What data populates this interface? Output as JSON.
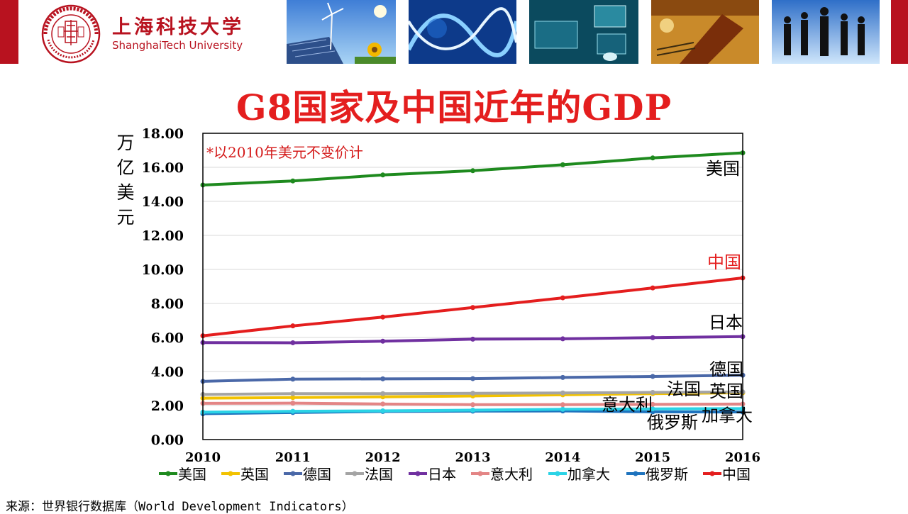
{
  "header": {
    "university_cn": "上海科技大学",
    "university_en": "ShanghaiTech University",
    "seal_text": "上海科技大学 SHANGHAITECH UNIVERSITY 2013"
  },
  "slide": {
    "title": "G8国家及中国近年的GDP",
    "source": "来源：世界银行数据库（World Development Indicators）"
  },
  "colors": {
    "brand_red": "#b8121f",
    "title_red": "#e41e1e"
  },
  "chart_data": {
    "type": "line",
    "title": "G8国家及中国近年的GDP",
    "ylabel": "万亿美元",
    "xlabel": "",
    "note": "*以2010年美元不变价计",
    "ylim": [
      0,
      18
    ],
    "y_ticks": [
      "0.00",
      "2.00",
      "4.00",
      "6.00",
      "8.00",
      "10.00",
      "12.00",
      "14.00",
      "16.00",
      "18.00"
    ],
    "x": [
      "2010",
      "2011",
      "2012",
      "2013",
      "2014",
      "2015",
      "2016"
    ],
    "grid": true,
    "legend_position": "bottom",
    "series": [
      {
        "name": "美国",
        "color": "#1e8a1e",
        "values": [
          14.96,
          15.2,
          15.55,
          15.8,
          16.15,
          16.55,
          16.85
        ]
      },
      {
        "name": "英国",
        "color": "#f2c200",
        "values": [
          2.43,
          2.47,
          2.51,
          2.56,
          2.63,
          2.7,
          2.75
        ]
      },
      {
        "name": "德国",
        "color": "#4a68a8",
        "values": [
          3.42,
          3.55,
          3.57,
          3.58,
          3.65,
          3.71,
          3.78
        ]
      },
      {
        "name": "法国",
        "color": "#a4a4a4",
        "values": [
          2.65,
          2.7,
          2.7,
          2.72,
          2.74,
          2.77,
          2.8
        ]
      },
      {
        "name": "日本",
        "color": "#7030a0",
        "values": [
          5.7,
          5.69,
          5.78,
          5.9,
          5.92,
          5.99,
          6.05
        ]
      },
      {
        "name": "意大利",
        "color": "#e38585",
        "values": [
          2.13,
          2.14,
          2.09,
          2.05,
          2.05,
          2.07,
          2.09
        ]
      },
      {
        "name": "加拿大",
        "color": "#2ad3e6",
        "values": [
          1.61,
          1.66,
          1.69,
          1.73,
          1.78,
          1.8,
          1.82
        ]
      },
      {
        "name": "俄罗斯",
        "color": "#1e73be",
        "values": [
          1.52,
          1.59,
          1.65,
          1.67,
          1.68,
          1.63,
          1.62
        ]
      },
      {
        "name": "中国",
        "color": "#e41e1e",
        "values": [
          6.1,
          6.68,
          7.2,
          7.76,
          8.33,
          8.91,
          9.5
        ]
      }
    ],
    "annotations": [
      {
        "text": "美国",
        "series": "美国"
      },
      {
        "text": "中国",
        "series": "中国"
      },
      {
        "text": "日本",
        "series": "日本"
      },
      {
        "text": "德国",
        "series": "德国"
      },
      {
        "text": "英国",
        "series": "英国"
      },
      {
        "text": "法国",
        "series": "法国"
      },
      {
        "text": "意大利",
        "series": "意大利"
      },
      {
        "text": "加拿大",
        "series": "加拿大"
      },
      {
        "text": "俄罗斯",
        "series": "俄罗斯"
      }
    ]
  }
}
